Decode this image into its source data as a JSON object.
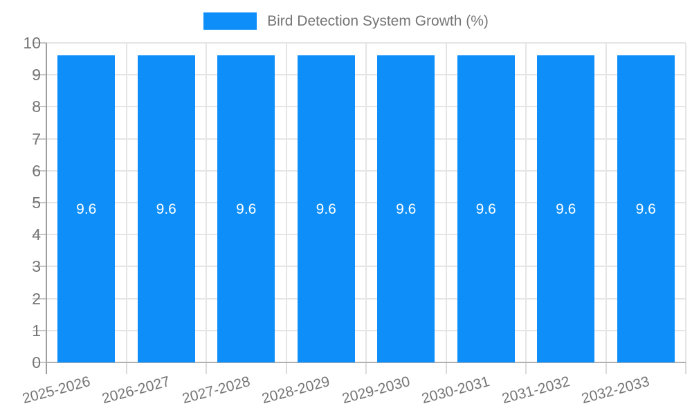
{
  "legend": {
    "label": "Bird Detection System Growth (%)",
    "swatch_color": "#0d8ef8"
  },
  "chart_data": {
    "type": "bar",
    "title": "Bird Detection System Growth (%)",
    "categories": [
      "2025-2026",
      "2026-2027",
      "2027-2028",
      "2028-2029",
      "2029-2030",
      "2030-2031",
      "2031-2032",
      "2032-2033"
    ],
    "values": [
      9.6,
      9.6,
      9.6,
      9.6,
      9.6,
      9.6,
      9.6,
      9.6
    ],
    "bar_value_labels": [
      "9.6",
      "9.6",
      "9.6",
      "9.6",
      "9.6",
      "9.6",
      "9.6",
      "9.6"
    ],
    "xlabel": "",
    "ylabel": "",
    "ylim": [
      0,
      10
    ],
    "yticks": [
      "0",
      "1",
      "2",
      "3",
      "4",
      "5",
      "6",
      "7",
      "8",
      "9",
      "10"
    ],
    "grid": true,
    "legend_position": "top",
    "x_tick_rotation_deg": -15,
    "colors": {
      "bar": "#0d8ef8",
      "value_label": "#ffffff",
      "axis_text": "#757575",
      "grid": "#e5e5e5",
      "x_axis_line": "#b0b0b0",
      "y_axis_line": "#9e9e9e",
      "y_tick": "#c6c6c6",
      "x_tick": "#dadada",
      "background": "#ffffff"
    }
  }
}
